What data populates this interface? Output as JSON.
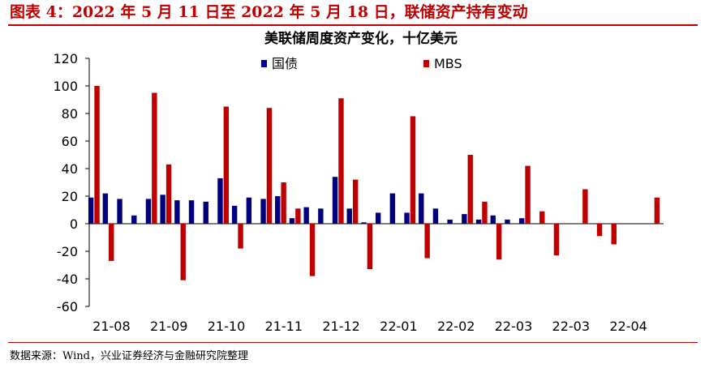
{
  "figure_title": "图表 4：2022 年 5 月 11 日至 2022 年 5 月 18 日，联储资产持有变动",
  "source_note": "数据来源：Wind，兴业证券经济与金融研究院整理",
  "colors": {
    "accent": "#c00000",
    "treasury": "#00007f",
    "mbs": "#c00000",
    "axis": "#000000"
  },
  "chart_data": {
    "type": "bar",
    "title": "美联储周度资产变化，十亿美元",
    "legend_position": "top",
    "ylim": [
      -60,
      120
    ],
    "yticks": [
      -60,
      -40,
      -20,
      0,
      20,
      40,
      60,
      80,
      100,
      120
    ],
    "xtick_labels": [
      "21-08",
      "21-09",
      "21-10",
      "21-11",
      "21-12",
      "22-01",
      "22-02",
      "22-03",
      "22-03",
      "22-04"
    ],
    "n_periods": 40,
    "series": [
      {
        "name": "国债",
        "values": [
          19,
          22,
          18,
          6,
          18,
          21,
          17,
          17,
          16,
          33,
          13,
          19,
          18,
          20,
          4,
          12,
          11,
          34,
          11,
          1,
          8,
          22,
          8,
          22,
          11,
          3,
          7,
          3,
          6,
          3,
          4,
          0,
          0,
          0,
          0,
          0,
          0,
          0,
          0,
          0
        ]
      },
      {
        "name": "MBS",
        "values": [
          100,
          -27,
          0,
          0,
          95,
          43,
          -41,
          0,
          0,
          85,
          -18,
          0,
          84,
          30,
          11,
          -38,
          0,
          91,
          32,
          -33,
          0,
          0,
          78,
          -25,
          0,
          0,
          50,
          16,
          -26,
          0,
          42,
          9,
          -23,
          0,
          25,
          -9,
          -15,
          0,
          0,
          19
        ]
      }
    ]
  }
}
